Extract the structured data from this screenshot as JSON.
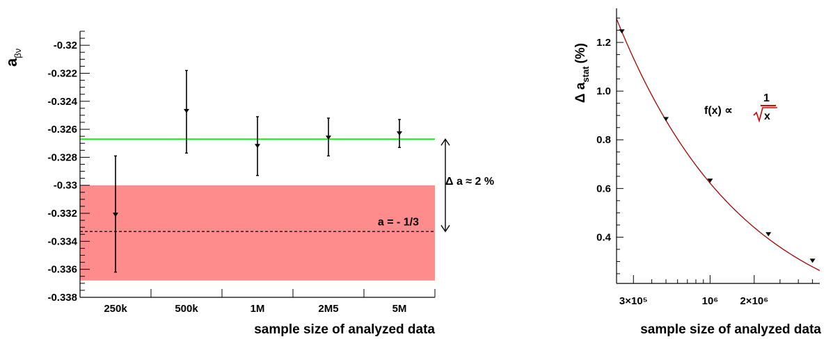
{
  "chart_data": [
    {
      "type": "scatter",
      "panel": "left",
      "xlabel": "sample size of analyzed data",
      "ylabel_main": "a",
      "ylabel_sub": "βν",
      "categories": [
        "250k",
        "500k",
        "1M",
        "2M5",
        "5M"
      ],
      "yticks": [
        "-0.338",
        "-0.336",
        "-0.334",
        "-0.332",
        "-0.33",
        "-0.328",
        "-0.326",
        "-0.324",
        "-0.322",
        "-0.32"
      ],
      "ylim": [
        -0.338,
        -0.319
      ],
      "points": [
        {
          "category": "250k",
          "y": -0.3321,
          "err_low": 0.0041,
          "err_high": 0.0042
        },
        {
          "category": "500k",
          "y": -0.3247,
          "err_low": 0.003,
          "err_high": 0.0029
        },
        {
          "category": "1M",
          "y": -0.3272,
          "err_low": 0.0021,
          "err_high": 0.0021
        },
        {
          "category": "2M5",
          "y": -0.3266,
          "err_low": 0.0013,
          "err_high": 0.0014
        },
        {
          "category": "5M",
          "y": -0.3263,
          "err_low": 0.001,
          "err_high": 0.001
        }
      ],
      "reference_line": {
        "y": -0.3333,
        "style": "dashed",
        "label": "a = - 1/3"
      },
      "fit_line": {
        "y": -0.3267,
        "color": "#00ee00"
      },
      "band": {
        "ymin": -0.3368,
        "ymax": -0.33,
        "color": "#ff8c8c"
      },
      "delta_annotation": {
        "text": "Δ a ≈ 2 %"
      },
      "grid": false
    },
    {
      "type": "scatter",
      "panel": "right",
      "xlabel": "sample size of analyzed data",
      "ylabel_prefix": "Δ a",
      "ylabel_sub": "stat",
      "ylabel_suffix": "(%)",
      "x_scale": "log",
      "xlim": [
        230000,
        5600000
      ],
      "ylim": [
        0.21,
        1.34
      ],
      "yticks": [
        "0.4",
        "0.6",
        "0.8",
        "1.0",
        "1.2"
      ],
      "xtick_labels": [
        "3×10⁵",
        "10⁶",
        "2×10⁶"
      ],
      "x_major": [
        300000,
        1000000,
        2000000
      ],
      "x_minor": [
        400000,
        500000,
        600000,
        700000,
        800000,
        900000,
        3000000,
        4000000,
        5000000
      ],
      "points": [
        {
          "x": 250000,
          "y": 1.245
        },
        {
          "x": 500000,
          "y": 0.885
        },
        {
          "x": 1000000,
          "y": 0.632
        },
        {
          "x": 2500000,
          "y": 0.412
        },
        {
          "x": 5000000,
          "y": 0.303
        }
      ],
      "fit": {
        "formula_lhs": "f(x) ∝",
        "numerator": "1",
        "denominator": "x",
        "color": "#dd0000",
        "curve_color": "#aa0000",
        "constant": 622,
        "xmin": 230000,
        "xmax": 5600000
      },
      "grid": false
    }
  ]
}
